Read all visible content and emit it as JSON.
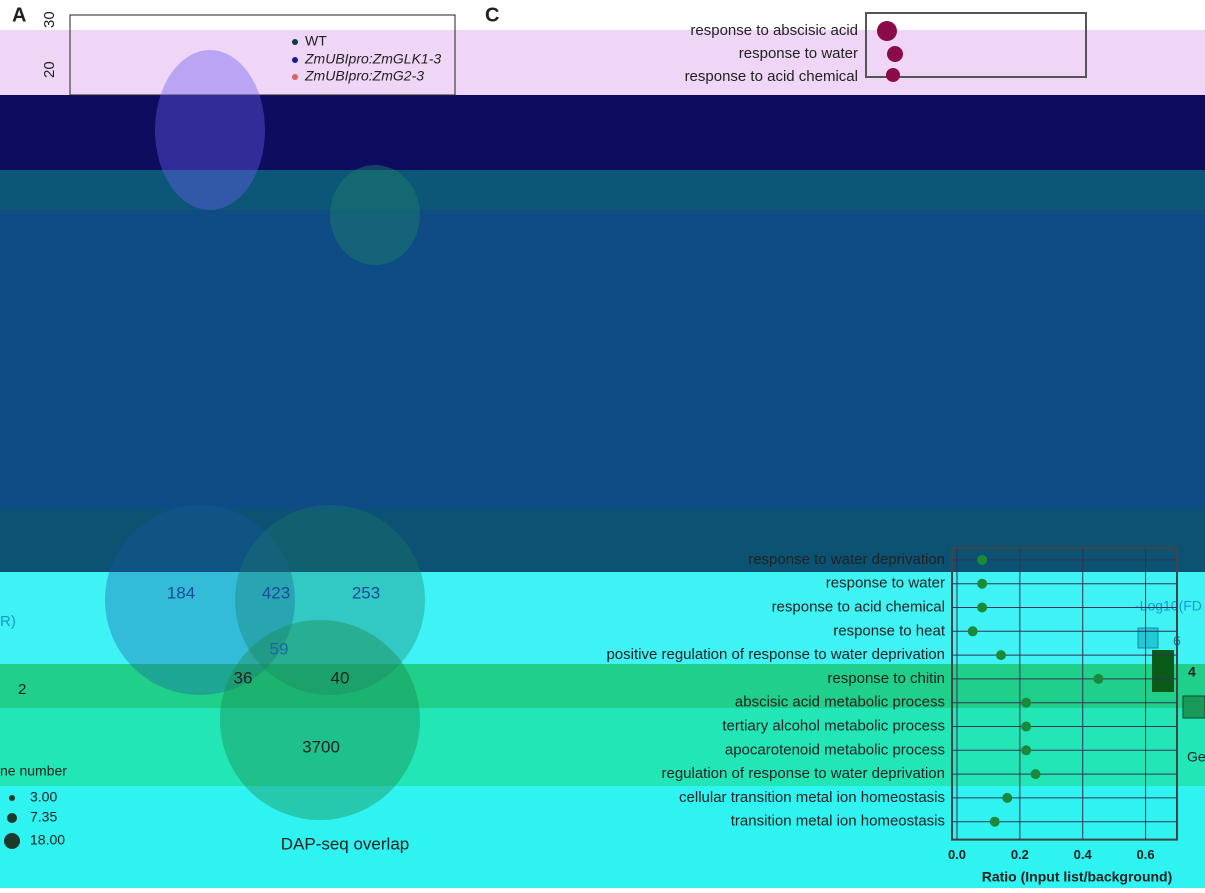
{
  "panel_a": {
    "label": "A",
    "yticks": [
      "30",
      "20"
    ],
    "legend": [
      "WT",
      "ZmUBIpro:ZmGLK1-3",
      "ZmUBIpro:ZmG2-3"
    ],
    "fragment": "R)",
    "side_tick": "2"
  },
  "panel_c": {
    "label": "C",
    "terms": [
      "response to abscisic acid",
      "response to water",
      "response to acid chemical"
    ]
  },
  "venn": {
    "counts": [
      "184",
      "423",
      "253",
      "59",
      "36",
      "40",
      "3700"
    ],
    "title": "DAP-seq overlap"
  },
  "gene_number": {
    "title": "ne number",
    "sizes": [
      "3.00",
      "7.35",
      "18.00"
    ]
  },
  "color_legend": {
    "title": "-Log10(FD",
    "ticks": [
      "6",
      "4"
    ],
    "fragment": "Ge"
  },
  "chart_data": {
    "type": "dot",
    "categories": [
      "response to water deprivation",
      "response to water",
      "response to acid chemical",
      "response to heat",
      "positive regulation of response to water deprivation",
      "response to chitin",
      "abscisic acid metabolic process",
      "tertiary alcohol metabolic process",
      "apocarotenoid metabolic process",
      "regulation of response to water deprivation",
      "cellular transition metal ion homeostasis",
      "transition metal ion homeostasis"
    ],
    "values": [
      0.08,
      0.08,
      0.08,
      0.05,
      0.14,
      0.45,
      0.22,
      0.22,
      0.22,
      0.25,
      0.16,
      0.12
    ],
    "color": "#1a8a3a",
    "xlim": [
      0,
      0.7
    ],
    "xticks": [
      {
        "value": 0,
        "label": "0.0"
      },
      {
        "value": 0.2,
        "label": "0.2"
      },
      {
        "value": 0.4,
        "label": "0.4"
      },
      {
        "value": 0.6,
        "label": "0.6"
      }
    ],
    "xlabel": "Ratio (Input list/background)",
    "grid": true
  }
}
